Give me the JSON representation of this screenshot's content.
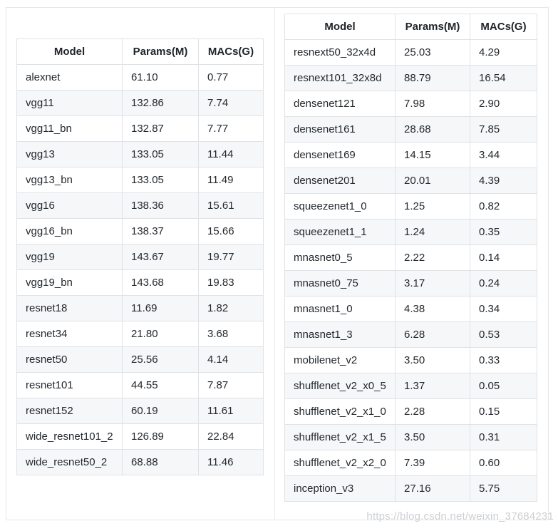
{
  "page": {
    "watermark": "https://blog.csdn.net/weixin_37684231"
  },
  "colors": {
    "table_border": "#dfe2e6",
    "panel_border": "#e6e6e6",
    "divider": "#ececec",
    "stripe": "#f5f7f9",
    "text": "#24292e",
    "watermark": "#c3c7cc"
  },
  "left_table": {
    "headers": [
      "Model",
      "Params(M)",
      "MACs(G)"
    ],
    "rows": [
      [
        "alexnet",
        "61.10",
        "0.77"
      ],
      [
        "vgg11",
        "132.86",
        "7.74"
      ],
      [
        "vgg11_bn",
        "132.87",
        "7.77"
      ],
      [
        "vgg13",
        "133.05",
        "11.44"
      ],
      [
        "vgg13_bn",
        "133.05",
        "11.49"
      ],
      [
        "vgg16",
        "138.36",
        "15.61"
      ],
      [
        "vgg16_bn",
        "138.37",
        "15.66"
      ],
      [
        "vgg19",
        "143.67",
        "19.77"
      ],
      [
        "vgg19_bn",
        "143.68",
        "19.83"
      ],
      [
        "resnet18",
        "11.69",
        "1.82"
      ],
      [
        "resnet34",
        "21.80",
        "3.68"
      ],
      [
        "resnet50",
        "25.56",
        "4.14"
      ],
      [
        "resnet101",
        "44.55",
        "7.87"
      ],
      [
        "resnet152",
        "60.19",
        "11.61"
      ],
      [
        "wide_resnet101_2",
        "126.89",
        "22.84"
      ],
      [
        "wide_resnet50_2",
        "68.88",
        "11.46"
      ]
    ]
  },
  "right_table": {
    "headers": [
      "Model",
      "Params(M)",
      "MACs(G)"
    ],
    "rows": [
      [
        "resnext50_32x4d",
        "25.03",
        "4.29"
      ],
      [
        "resnext101_32x8d",
        "88.79",
        "16.54"
      ],
      [
        "densenet121",
        "7.98",
        "2.90"
      ],
      [
        "densenet161",
        "28.68",
        "7.85"
      ],
      [
        "densenet169",
        "14.15",
        "3.44"
      ],
      [
        "densenet201",
        "20.01",
        "4.39"
      ],
      [
        "squeezenet1_0",
        "1.25",
        "0.82"
      ],
      [
        "squeezenet1_1",
        "1.24",
        "0.35"
      ],
      [
        "mnasnet0_5",
        "2.22",
        "0.14"
      ],
      [
        "mnasnet0_75",
        "3.17",
        "0.24"
      ],
      [
        "mnasnet1_0",
        "4.38",
        "0.34"
      ],
      [
        "mnasnet1_3",
        "6.28",
        "0.53"
      ],
      [
        "mobilenet_v2",
        "3.50",
        "0.33"
      ],
      [
        "shufflenet_v2_x0_5",
        "1.37",
        "0.05"
      ],
      [
        "shufflenet_v2_x1_0",
        "2.28",
        "0.15"
      ],
      [
        "shufflenet_v2_x1_5",
        "3.50",
        "0.31"
      ],
      [
        "shufflenet_v2_x2_0",
        "7.39",
        "0.60"
      ],
      [
        "inception_v3",
        "27.16",
        "5.75"
      ]
    ]
  }
}
